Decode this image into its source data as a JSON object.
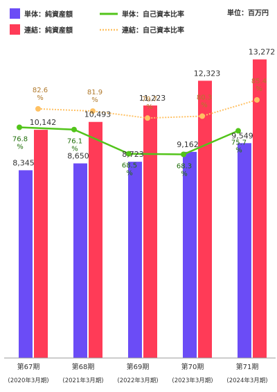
{
  "unit_label": "単位：百万円",
  "legend": [
    {
      "name": "単体：純資産額",
      "type": "bar",
      "color": "#6b4cf6"
    },
    {
      "name": "連結：純資産額",
      "type": "bar",
      "color": "#ff3b57"
    },
    {
      "name": "単体：自己資本比率",
      "type": "line",
      "color": "#52c41a"
    },
    {
      "name": "連結：自己資本比率",
      "type": "dotted-line",
      "color": "#ffc163"
    }
  ],
  "chart_data": {
    "type": "bar",
    "categories": [
      "第67期",
      "第68期",
      "第69期",
      "第70期",
      "第71期"
    ],
    "category_sub": [
      "(2020年3月期)",
      "(2021年3月期)",
      "(2022年3月期)",
      "(2023年3月期)",
      "(2024年3月期)"
    ],
    "series": [
      {
        "name": "単体：純資産額",
        "kind": "bar",
        "values": [
          8345,
          8650,
          8723,
          9162,
          9549
        ],
        "labels": [
          "8,345",
          "8,650",
          "8,723",
          "9,162",
          "9,549"
        ],
        "color": "#6b4cf6"
      },
      {
        "name": "連結：純資産額",
        "kind": "bar",
        "values": [
          10142,
          10493,
          11223,
          12323,
          13272
        ],
        "labels": [
          "10,142",
          "10,493",
          "11,223",
          "12,323",
          "13,272"
        ],
        "color": "#ff3b57"
      },
      {
        "name": "単体：自己資本比率",
        "kind": "line",
        "axis": "right",
        "values": [
          76.8,
          76.1,
          68.5,
          68.3,
          75.7
        ],
        "labels": [
          "76.8",
          "76.1",
          "68.5",
          "68.3",
          "75.7"
        ],
        "color": "#52c41a"
      },
      {
        "name": "連結：自己資本比率",
        "kind": "dotted-line",
        "axis": "right",
        "values": [
          82.6,
          81.9,
          79.7,
          80.3,
          85.4
        ],
        "labels": [
          "82.6",
          "81.9",
          "79.7",
          "80.3",
          "85.4"
        ],
        "color": "#ffc163"
      }
    ],
    "percent_unit": "%",
    "ylim": [
      0,
      14000
    ],
    "y2lim": [
      0,
      100
    ],
    "grid": false,
    "legend_position": "top"
  }
}
